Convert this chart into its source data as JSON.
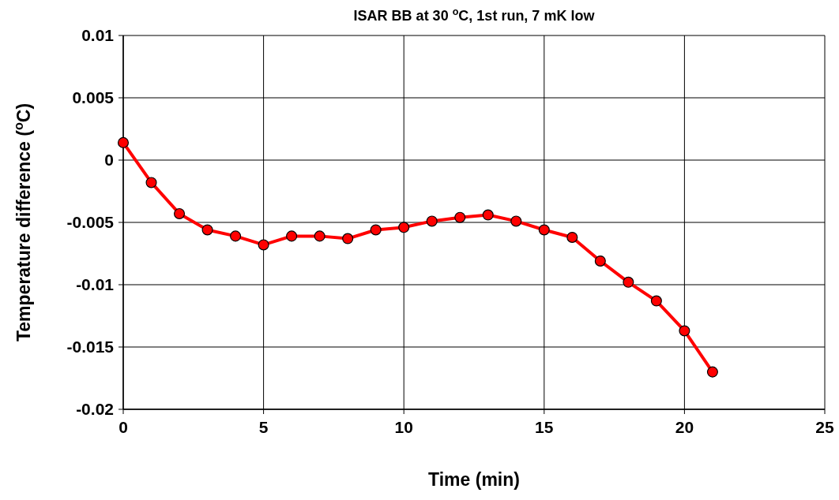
{
  "chart_data": {
    "type": "line",
    "title": "ISAR BB at 30 $^{o}$C, 1st run, 7 mK low",
    "xlabel": "Time (min)",
    "ylabel": "Temperature difference ($^{o}$C)",
    "x": [
      0,
      1,
      2,
      3,
      4,
      5,
      6,
      7,
      8,
      9,
      10,
      11,
      12,
      13,
      14,
      15,
      16,
      17,
      18,
      19,
      20,
      21
    ],
    "series": [
      {
        "color": "#ff0000",
        "values": [
          0.0014,
          -0.0018,
          -0.0043,
          -0.0056,
          -0.0061,
          -0.0068,
          -0.0061,
          -0.0061,
          -0.0063,
          -0.0056,
          -0.0054,
          -0.0049,
          -0.0046,
          -0.0044,
          -0.0049,
          -0.0056,
          -0.0062,
          -0.0081,
          -0.0098,
          -0.0113,
          -0.0137,
          -0.017
        ]
      }
    ],
    "xlim": [
      0,
      25
    ],
    "xticks": [
      0,
      5,
      10,
      15,
      20,
      25
    ],
    "ylim": [
      -0.02,
      0.01
    ],
    "yticks": [
      -0.02,
      -0.015,
      -0.01,
      -0.005,
      0,
      0.005,
      0.01
    ],
    "grid": true,
    "marker": "circle",
    "line_style": "solid"
  }
}
